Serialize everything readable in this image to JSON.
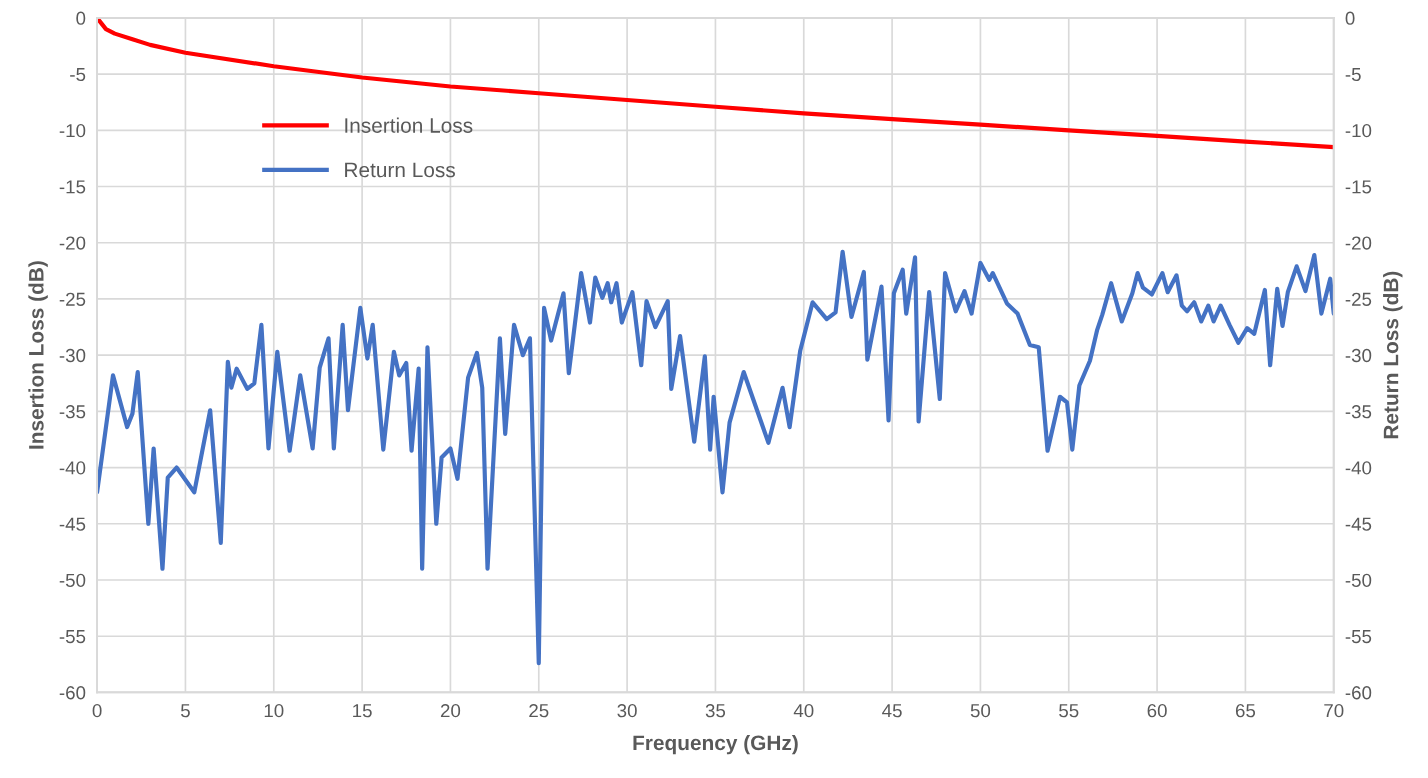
{
  "chart_data": {
    "type": "line",
    "xlabel": "Frequency (GHz)",
    "ylabel": "Insertion Loss (dB)",
    "y2label": "Return Loss (dB)",
    "xlim": [
      0,
      70
    ],
    "xticks": [
      0,
      5,
      10,
      15,
      20,
      25,
      30,
      35,
      40,
      45,
      50,
      55,
      60,
      65,
      70
    ],
    "ylim": [
      -60,
      0
    ],
    "yticks": [
      -60,
      -55,
      -50,
      -45,
      -40,
      -35,
      -30,
      -25,
      -20,
      -15,
      -10,
      -5,
      0
    ],
    "y2lim": [
      -60,
      0
    ],
    "y2ticks": [
      -60,
      -55,
      -50,
      -45,
      -40,
      -35,
      -30,
      -25,
      -20,
      -15,
      -10,
      -5,
      0
    ],
    "grid": true,
    "legend": "top left",
    "marker": "none",
    "line_style": "solid",
    "series": [
      {
        "name": "Insertion Loss",
        "color": "#ff0000",
        "x": [
          0,
          0.5,
          1,
          2,
          3,
          5,
          10,
          15,
          20,
          25,
          30,
          35,
          40,
          45,
          50,
          55,
          60,
          65,
          70
        ],
        "values": [
          0,
          -1.0,
          -1.4,
          -1.9,
          -2.4,
          -3.1,
          -4.3,
          -5.3,
          -6.1,
          -6.7,
          -7.3,
          -7.9,
          -8.5,
          -9.0,
          -9.5,
          -10.0,
          -10.5,
          -11.0,
          -11.5
        ]
      },
      {
        "name": "Return Loss",
        "color": "#4472c4",
        "axis": "y2",
        "x": [
          0,
          0.9,
          1.7,
          2.0,
          2.3,
          2.9,
          3.2,
          3.7,
          4.0,
          4.5,
          5.5,
          6.4,
          7.0,
          7.4,
          7.6,
          7.9,
          8.5,
          8.9,
          9.3,
          9.7,
          10.2,
          10.9,
          11.5,
          12.2,
          12.6,
          13.1,
          13.4,
          13.9,
          14.2,
          14.9,
          15.3,
          15.6,
          16.2,
          16.8,
          17.1,
          17.5,
          17.8,
          18.2,
          18.4,
          18.7,
          19.2,
          19.5,
          20.0,
          20.4,
          21.0,
          21.5,
          21.8,
          22.1,
          22.8,
          23.1,
          23.6,
          24.1,
          24.5,
          25.0,
          25.3,
          25.7,
          26.4,
          26.7,
          27.4,
          27.9,
          28.2,
          28.6,
          28.9,
          29.1,
          29.4,
          29.7,
          30.3,
          30.8,
          31.1,
          31.6,
          32.3,
          32.5,
          33.0,
          33.8,
          34.4,
          34.7,
          34.9,
          35.4,
          35.8,
          36.6,
          38.0,
          38.8,
          39.2,
          39.8,
          40.5,
          41.3,
          41.8,
          42.2,
          42.7,
          43.4,
          43.6,
          44.4,
          44.8,
          45.1,
          45.6,
          45.8,
          46.3,
          46.5,
          47.1,
          47.7,
          48.0,
          48.6,
          49.1,
          49.5,
          50.0,
          50.5,
          50.7,
          51.5,
          52.1,
          52.8,
          53.3,
          53.8,
          54.5,
          54.9,
          55.2,
          55.6,
          56.2,
          56.6,
          56.9,
          57.4,
          58.0,
          58.6,
          58.9,
          59.2,
          59.7,
          60.3,
          60.6,
          61.1,
          61.4,
          61.7,
          62.1,
          62.5,
          62.9,
          63.2,
          63.6,
          64.1,
          64.6,
          65.1,
          65.5,
          66.1,
          66.4,
          66.8,
          67.1,
          67.4,
          67.9,
          68.4,
          68.9,
          69.3,
          69.8,
          70.0
        ],
        "values": [
          -42.2,
          -31.8,
          -36.4,
          -35.2,
          -31.5,
          -45.0,
          -38.3,
          -49.0,
          -40.9,
          -40.0,
          -42.2,
          -34.9,
          -46.7,
          -30.6,
          -32.9,
          -31.2,
          -33.0,
          -32.5,
          -27.3,
          -38.3,
          -29.7,
          -38.5,
          -31.8,
          -38.3,
          -31.1,
          -28.5,
          -38.3,
          -27.3,
          -34.9,
          -25.8,
          -30.3,
          -27.3,
          -38.4,
          -29.7,
          -31.8,
          -30.7,
          -38.5,
          -31.2,
          -49.0,
          -29.3,
          -45.0,
          -39.1,
          -38.3,
          -41.0,
          -32.0,
          -29.8,
          -32.9,
          -49.0,
          -28.5,
          -37.0,
          -27.3,
          -30.0,
          -28.5,
          -57.4,
          -25.8,
          -28.7,
          -24.5,
          -31.6,
          -22.7,
          -27.1,
          -23.1,
          -24.9,
          -23.6,
          -25.3,
          -23.6,
          -27.1,
          -24.4,
          -30.9,
          -25.2,
          -27.5,
          -25.2,
          -33.0,
          -28.3,
          -37.7,
          -30.1,
          -38.4,
          -33.7,
          -42.2,
          -36.0,
          -31.5,
          -37.8,
          -32.9,
          -36.4,
          -29.6,
          -25.3,
          -26.8,
          -26.2,
          -20.8,
          -26.6,
          -22.6,
          -30.4,
          -23.9,
          -35.8,
          -24.5,
          -22.4,
          -26.3,
          -21.3,
          -35.9,
          -24.4,
          -33.9,
          -22.7,
          -26.1,
          -24.3,
          -26.3,
          -21.8,
          -23.3,
          -22.7,
          -25.4,
          -26.3,
          -29.1,
          -29.3,
          -38.5,
          -33.7,
          -34.2,
          -38.4,
          -32.7,
          -30.5,
          -27.8,
          -26.4,
          -23.6,
          -27.0,
          -24.5,
          -22.7,
          -24.0,
          -24.6,
          -22.7,
          -24.4,
          -22.9,
          -25.6,
          -26.1,
          -25.3,
          -27.0,
          -25.6,
          -27.0,
          -25.6,
          -27.3,
          -28.9,
          -27.6,
          -28.1,
          -24.2,
          -30.9,
          -24.1,
          -27.4,
          -24.4,
          -22.1,
          -24.3,
          -21.1,
          -26.3,
          -23.2,
          -26.3
        ]
      }
    ]
  }
}
